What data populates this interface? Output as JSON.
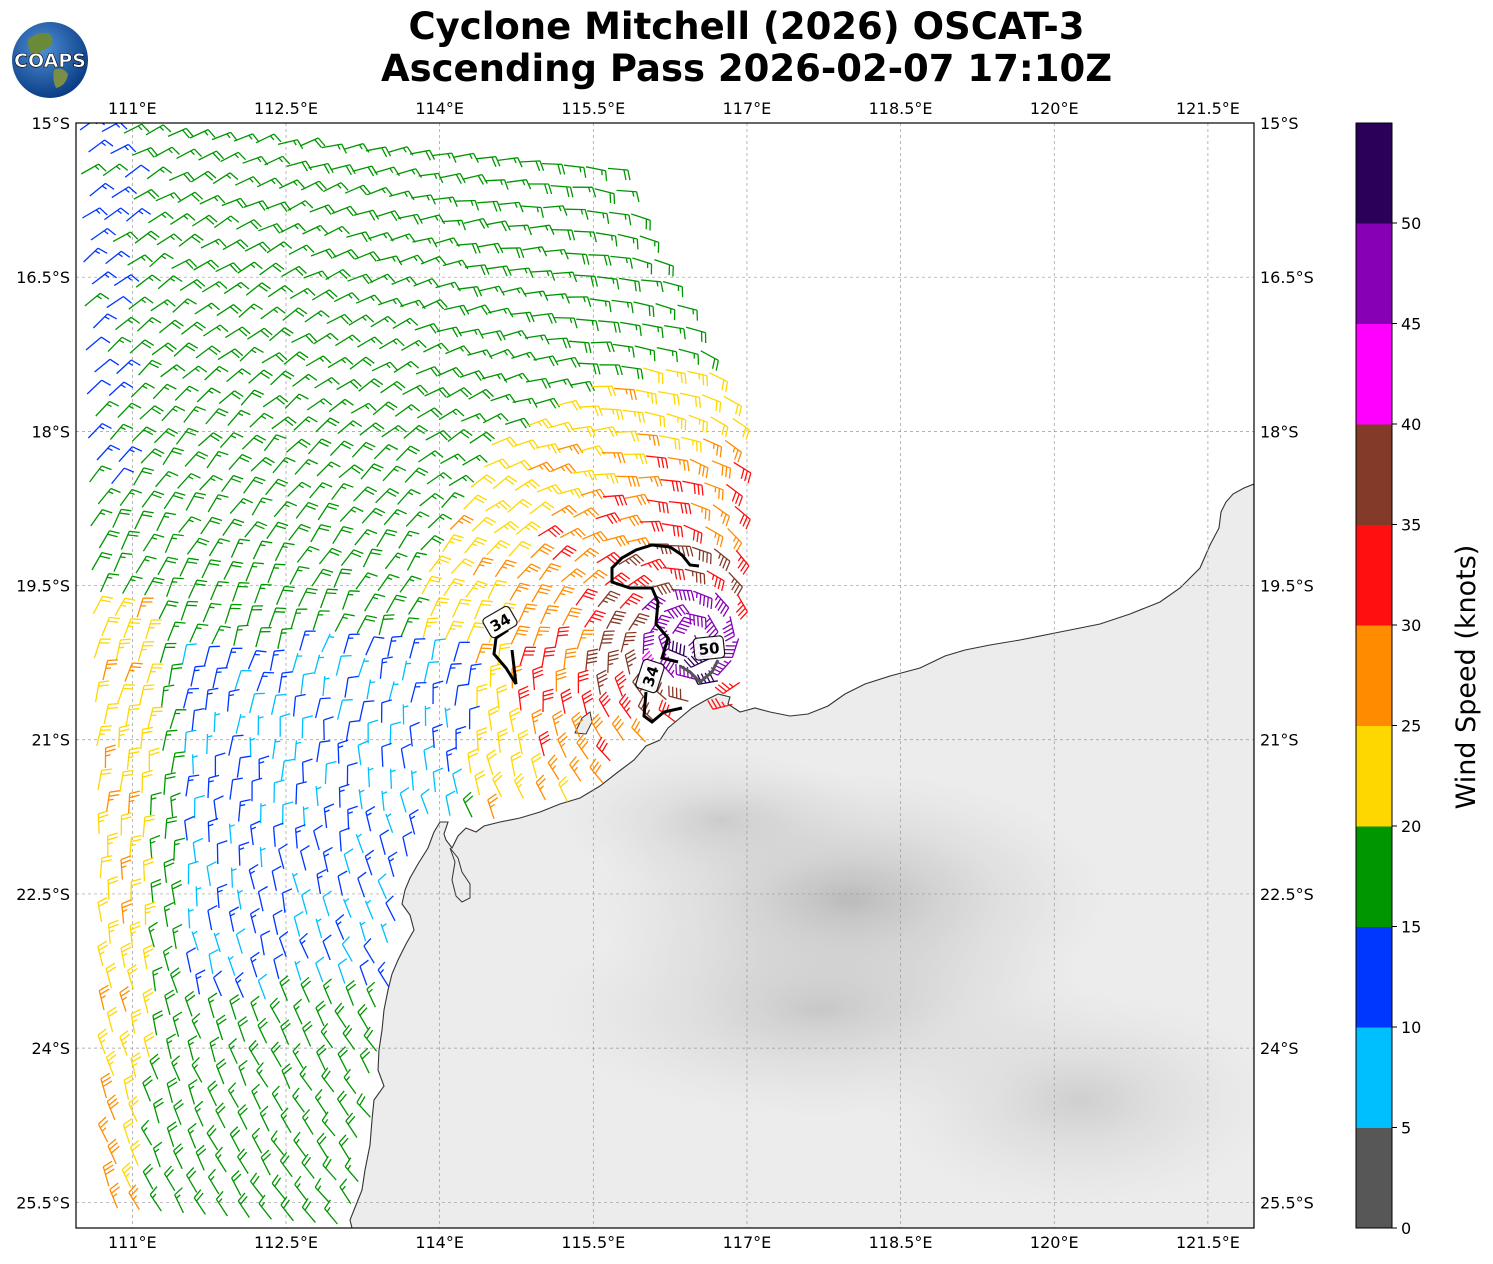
{
  "title": {
    "line1": "Cyclone Mitchell (2026) OSCAT-3",
    "line2": "Ascending Pass 2026-02-07 17:10Z"
  },
  "logo": {
    "text": "COAPS"
  },
  "map": {
    "lon_range": [
      110.45,
      121.95
    ],
    "lat_range": [
      -15.0,
      -25.75
    ],
    "lon_ticks": [
      "111°E",
      "112.5°E",
      "114°E",
      "115.5°E",
      "117°E",
      "118.5°E",
      "120°E",
      "121.5°E"
    ],
    "lat_ticks": [
      "15°S",
      "16.5°S",
      "18°S",
      "19.5°S",
      "21°S",
      "22.5°S",
      "24°S",
      "25.5°S"
    ],
    "gridlines": true,
    "land_color": "#ffffff",
    "coast_color": "#333333",
    "contour_labels": [
      "34",
      "50",
      "34"
    ]
  },
  "colorbar": {
    "label": "Wind Speed (knots)",
    "ticks": [
      "0",
      "5",
      "10",
      "15",
      "20",
      "25",
      "30",
      "35",
      "40",
      "45",
      "50"
    ],
    "colors": [
      "#575757",
      "#00bfff",
      "#0037ff",
      "#009600",
      "#ffd700",
      "#ff8c00",
      "#ff0f0f",
      "#833a29",
      "#ff00ff",
      "#8700b5",
      "#2b0058"
    ]
  }
}
